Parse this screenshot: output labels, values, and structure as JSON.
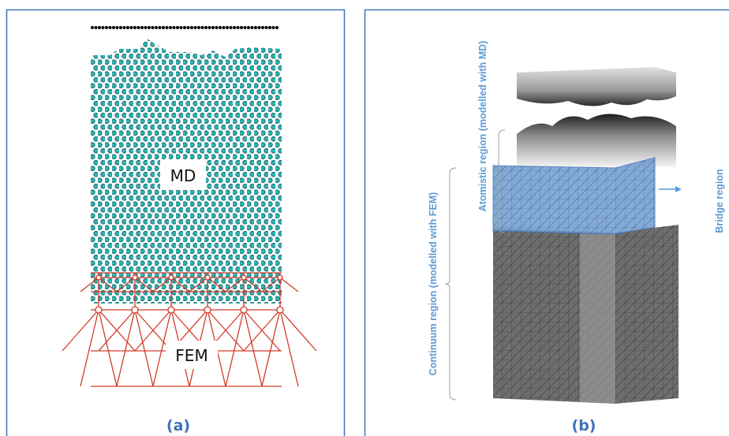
{
  "panel_a": {
    "caption": "(a)",
    "md_label": "MD",
    "fem_label": "FEM"
  },
  "panel_b": {
    "caption": "(b)",
    "atomistic_label": "Atomistic region (modelled with MD)",
    "continuum_label": "Continuum region (modelled with FEM)",
    "bridge_label": "Bridge region"
  }
}
